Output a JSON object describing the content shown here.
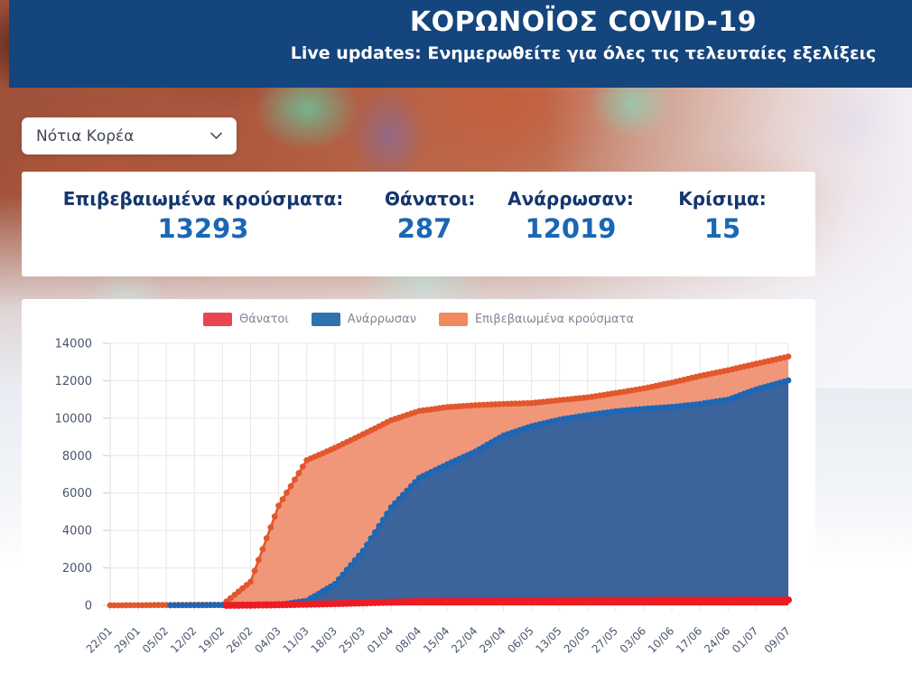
{
  "header": {
    "title": "ΚΟΡΩΝΟΪΟΣ COVID-19",
    "subtitle": "Live updates: Ενημερωθείτε για όλες τις τελευταίες εξελίξεις",
    "bg_color": "#14457d"
  },
  "country_select": {
    "value": "Νότια Κορέα",
    "chevron_icon": "chevron-down"
  },
  "stats": {
    "label_color": "#14366e",
    "value_color": "#1b66b5",
    "items": [
      {
        "label": "Επιβεβαιωμένα κρούσματα:",
        "value": "13293"
      },
      {
        "label": "Θάνατοι:",
        "value": "287"
      },
      {
        "label": "Ανάρρωσαν:",
        "value": "12019"
      },
      {
        "label": "Κρίσιμα:",
        "value": "15"
      }
    ]
  },
  "chart_data": {
    "type": "area",
    "title": "",
    "xlabel": "",
    "ylabel": "",
    "grid": true,
    "legend_position": "top",
    "ylim": [
      0,
      14000
    ],
    "y_ticks": [
      0,
      2000,
      4000,
      6000,
      8000,
      10000,
      12000,
      14000
    ],
    "x_tick_labels": [
      "22/01",
      "29/01",
      "05/02",
      "12/02",
      "19/02",
      "26/02",
      "04/03",
      "11/03",
      "18/03",
      "25/03",
      "01/04",
      "08/04",
      "15/04",
      "22/04",
      "29/04",
      "06/05",
      "13/05",
      "20/05",
      "27/05",
      "03/06",
      "10/06",
      "17/06",
      "24/06",
      "01/07",
      "09/07"
    ],
    "x_tick_days": [
      0,
      7,
      14,
      21,
      28,
      35,
      42,
      49,
      56,
      63,
      70,
      77,
      84,
      91,
      98,
      105,
      112,
      119,
      126,
      133,
      140,
      147,
      154,
      161,
      169
    ],
    "total_days": 169,
    "series": [
      {
        "key": "deaths",
        "name": "Θάνατοι",
        "line_color": "#ec1c24",
        "fill_color": "#ec1c24",
        "legend_color": "#e84550",
        "start_day": 29,
        "z": 2,
        "line_width": 5,
        "marker_radius": 4,
        "values_at_ticks": [
          0,
          0,
          0,
          0,
          0,
          12,
          32,
          60,
          91,
          131,
          169,
          204,
          225,
          238,
          247,
          255,
          260,
          264,
          269,
          272,
          277,
          280,
          282,
          284,
          287
        ]
      },
      {
        "key": "recovered",
        "name": "Ανάρρωσαν",
        "line_color": "#1e67b5",
        "fill_color": "#3b639c",
        "legend_color": "#2f72ae",
        "start_day": 15,
        "z": 1,
        "line_width": 2.6,
        "marker_radius": 3.4,
        "values_at_ticks": [
          0,
          0,
          1,
          7,
          16,
          24,
          30,
          247,
          1137,
          2909,
          5228,
          6807,
          7534,
          8213,
          9072,
          9570,
          9923,
          10162,
          10363,
          10500,
          10600,
          10760,
          10994,
          11537,
          12019
        ]
      },
      {
        "key": "confirmed",
        "name": "Επιβεβαιωμένα κρούσματα",
        "line_color": "#e2572c",
        "fill_color": "#f0977a",
        "legend_color": "#f08a5e",
        "start_day": 0,
        "z": 0,
        "line_width": 2.6,
        "marker_radius": 3.4,
        "values_at_ticks": [
          1,
          4,
          19,
          28,
          31,
          1261,
          5328,
          7755,
          8413,
          9137,
          9887,
          10384,
          10591,
          10694,
          10761,
          10806,
          10962,
          11110,
          11344,
          11590,
          11902,
          12257,
          12563,
          12904,
          13293
        ]
      }
    ]
  }
}
